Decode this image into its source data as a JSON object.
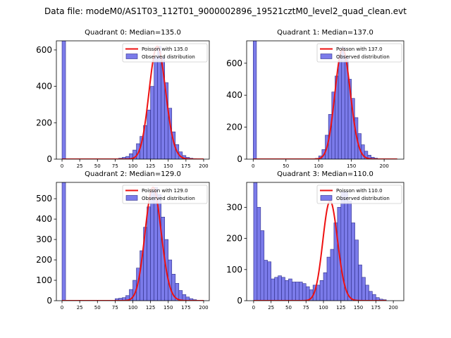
{
  "figure": {
    "suptitle": "Data file: modeM0/AS1T03_112T01_9000002896_19521cztM0_level2_quad_clean.evt"
  },
  "colors": {
    "bar_fill": "#7b7bea",
    "bar_edge": "#2f2f8a",
    "poisson": "#ee1111",
    "legend_border": "#cccccc"
  },
  "chart_data": [
    {
      "type": "bar",
      "title": "Quadrant 0: Median=135.0",
      "median": 135.0,
      "bin_width": 5,
      "xlim": [
        -8,
        208
      ],
      "ylim": [
        0,
        650
      ],
      "xticks": [
        0,
        25,
        50,
        75,
        100,
        125,
        150,
        175,
        200
      ],
      "yticks": [
        0,
        200,
        400,
        600
      ],
      "legend": [
        "Poisson with 135.0",
        "Observed distribution"
      ],
      "histogram": {
        "bin_starts": [
          0,
          75,
          80,
          85,
          90,
          95,
          100,
          105,
          110,
          115,
          120,
          125,
          130,
          135,
          140,
          145,
          150,
          155,
          160,
          165,
          170,
          175,
          180,
          185,
          190,
          195
        ],
        "counts": [
          650,
          2,
          5,
          10,
          15,
          30,
          50,
          85,
          125,
          185,
          270,
          400,
          560,
          620,
          560,
          420,
          280,
          150,
          80,
          40,
          20,
          10,
          5,
          3,
          1,
          1
        ]
      },
      "poisson_curve": {
        "lambda": 135.0,
        "peak": 620,
        "x_range": [
          0,
          200
        ]
      }
    },
    {
      "type": "bar",
      "title": "Quadrant 1: Median=137.0",
      "median": 137.0,
      "bin_width": 5,
      "xlim": [
        -10,
        230
      ],
      "ylim": [
        0,
        740
      ],
      "xticks": [
        0,
        50,
        100,
        150,
        200
      ],
      "yticks": [
        0,
        200,
        400,
        600
      ],
      "legend": [
        "Poisson with 137.0",
        "Observed distribution"
      ],
      "histogram": {
        "bin_starts": [
          0,
          95,
          100,
          105,
          110,
          115,
          120,
          125,
          130,
          135,
          140,
          145,
          150,
          155,
          160,
          165,
          170,
          175,
          180,
          185,
          190,
          195,
          200,
          205,
          210
        ],
        "counts": [
          740,
          5,
          20,
          60,
          150,
          280,
          420,
          520,
          650,
          700,
          640,
          500,
          380,
          260,
          160,
          90,
          50,
          25,
          12,
          6,
          3,
          2,
          1,
          1,
          1
        ]
      },
      "poisson_curve": {
        "lambda": 137.0,
        "peak": 690,
        "x_range": [
          0,
          220
        ]
      }
    },
    {
      "type": "bar",
      "title": "Quadrant 2: Median=129.0",
      "median": 129.0,
      "bin_width": 5,
      "xlim": [
        -8,
        208
      ],
      "ylim": [
        0,
        580
      ],
      "xticks": [
        0,
        25,
        50,
        75,
        100,
        125,
        150,
        175,
        200
      ],
      "yticks": [
        0,
        100,
        200,
        300,
        400,
        500
      ],
      "legend": [
        "Poisson with 129.0",
        "Observed distribution"
      ],
      "histogram": {
        "bin_starts": [
          0,
          75,
          80,
          85,
          90,
          95,
          100,
          105,
          110,
          115,
          120,
          125,
          130,
          135,
          140,
          145,
          150,
          155,
          160,
          165,
          170,
          175,
          180,
          185,
          190,
          195
        ],
        "counts": [
          580,
          10,
          12,
          15,
          25,
          55,
          100,
          160,
          245,
          360,
          460,
          540,
          555,
          520,
          410,
          300,
          200,
          130,
          85,
          50,
          30,
          18,
          10,
          5,
          2,
          1
        ]
      },
      "poisson_curve": {
        "lambda": 129.0,
        "peak": 555,
        "x_range": [
          0,
          200
        ]
      }
    },
    {
      "type": "bar",
      "title": "Quadrant 3: Median=110.0",
      "median": 110.0,
      "bin_width": 5,
      "xlim": [
        -10,
        215
      ],
      "ylim": [
        0,
        380
      ],
      "xticks": [
        0,
        25,
        50,
        75,
        100,
        125,
        150,
        175,
        200
      ],
      "yticks": [
        0,
        100,
        200,
        300
      ],
      "legend": [
        "Poisson with 110.0",
        "Observed distribution"
      ],
      "histogram": {
        "bin_starts": [
          0,
          5,
          10,
          15,
          20,
          25,
          30,
          35,
          40,
          45,
          50,
          55,
          60,
          65,
          70,
          75,
          80,
          85,
          90,
          95,
          100,
          105,
          110,
          115,
          120,
          125,
          130,
          135,
          140,
          145,
          150,
          155,
          160,
          165,
          170,
          175,
          180,
          185
        ],
        "counts": [
          380,
          300,
          225,
          130,
          125,
          70,
          75,
          80,
          75,
          65,
          70,
          60,
          60,
          60,
          55,
          45,
          35,
          50,
          50,
          65,
          90,
          140,
          165,
          250,
          300,
          350,
          350,
          320,
          250,
          195,
          115,
          75,
          50,
          30,
          20,
          10,
          5,
          3
        ]
      },
      "poisson_curve": {
        "lambda": 110.0,
        "peak": 320,
        "x_range": [
          0,
          190
        ]
      }
    }
  ]
}
